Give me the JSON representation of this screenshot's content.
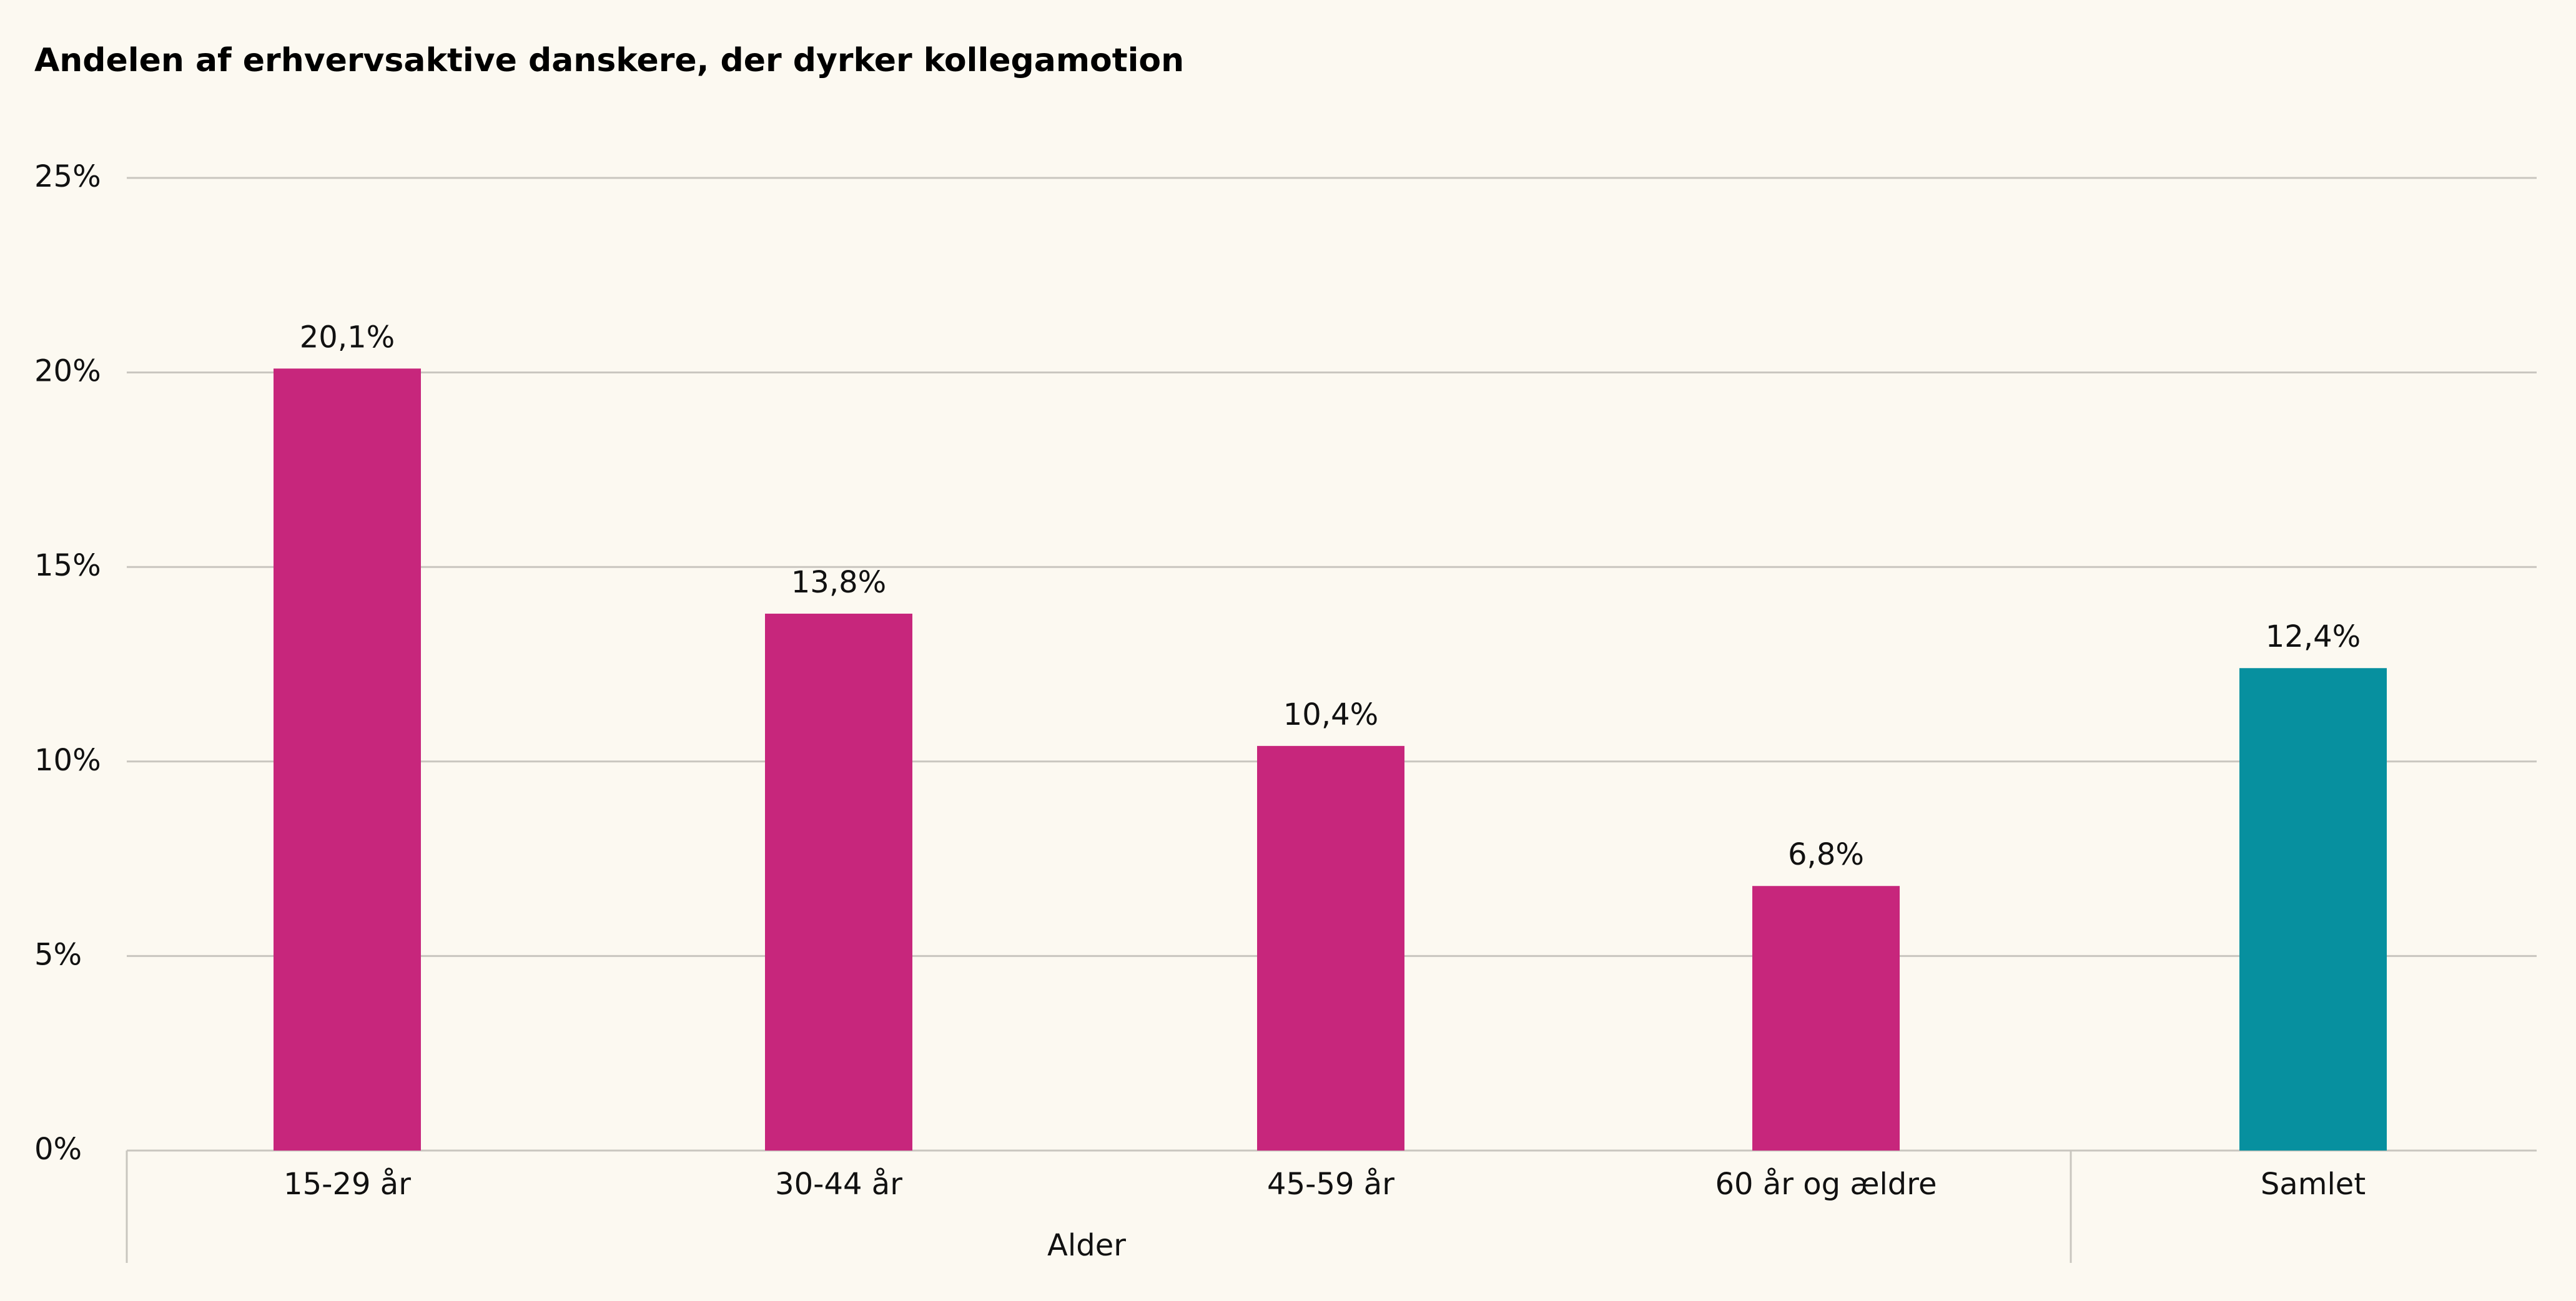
{
  "chart_data": {
    "type": "bar",
    "title": "Andelen af erhvervsaktive danskere, der dyrker kollegamotion",
    "xlabel": "",
    "ylabel": "",
    "categories": [
      "15-29 år",
      "30-44 år",
      "45-59 år",
      "60 år og ældre",
      "Samlet"
    ],
    "values": [
      20.1,
      13.8,
      10.4,
      6.8,
      12.4
    ],
    "value_labels": [
      "20,1%",
      "13,8%",
      "10,4%",
      "6,8%",
      "12,4%"
    ],
    "groups": [
      {
        "label": "Alder",
        "categories": [
          "15-29 år",
          "30-44 år",
          "45-59 år",
          "60 år og ældre"
        ]
      },
      {
        "label": "",
        "categories": [
          "Samlet"
        ]
      }
    ],
    "ylim": [
      0,
      25
    ],
    "yticks": [
      0,
      5,
      10,
      15,
      20,
      25
    ],
    "ytick_labels": [
      "0%",
      "5%",
      "10%",
      "15%",
      "20%",
      "25%"
    ],
    "grid": true,
    "legend": "none"
  },
  "colors": {
    "background": "#fcf9f1",
    "age_bars": "#c7267c",
    "total_bar": "#07909f",
    "gridline": "#c9c6bf",
    "text": "#111111"
  }
}
